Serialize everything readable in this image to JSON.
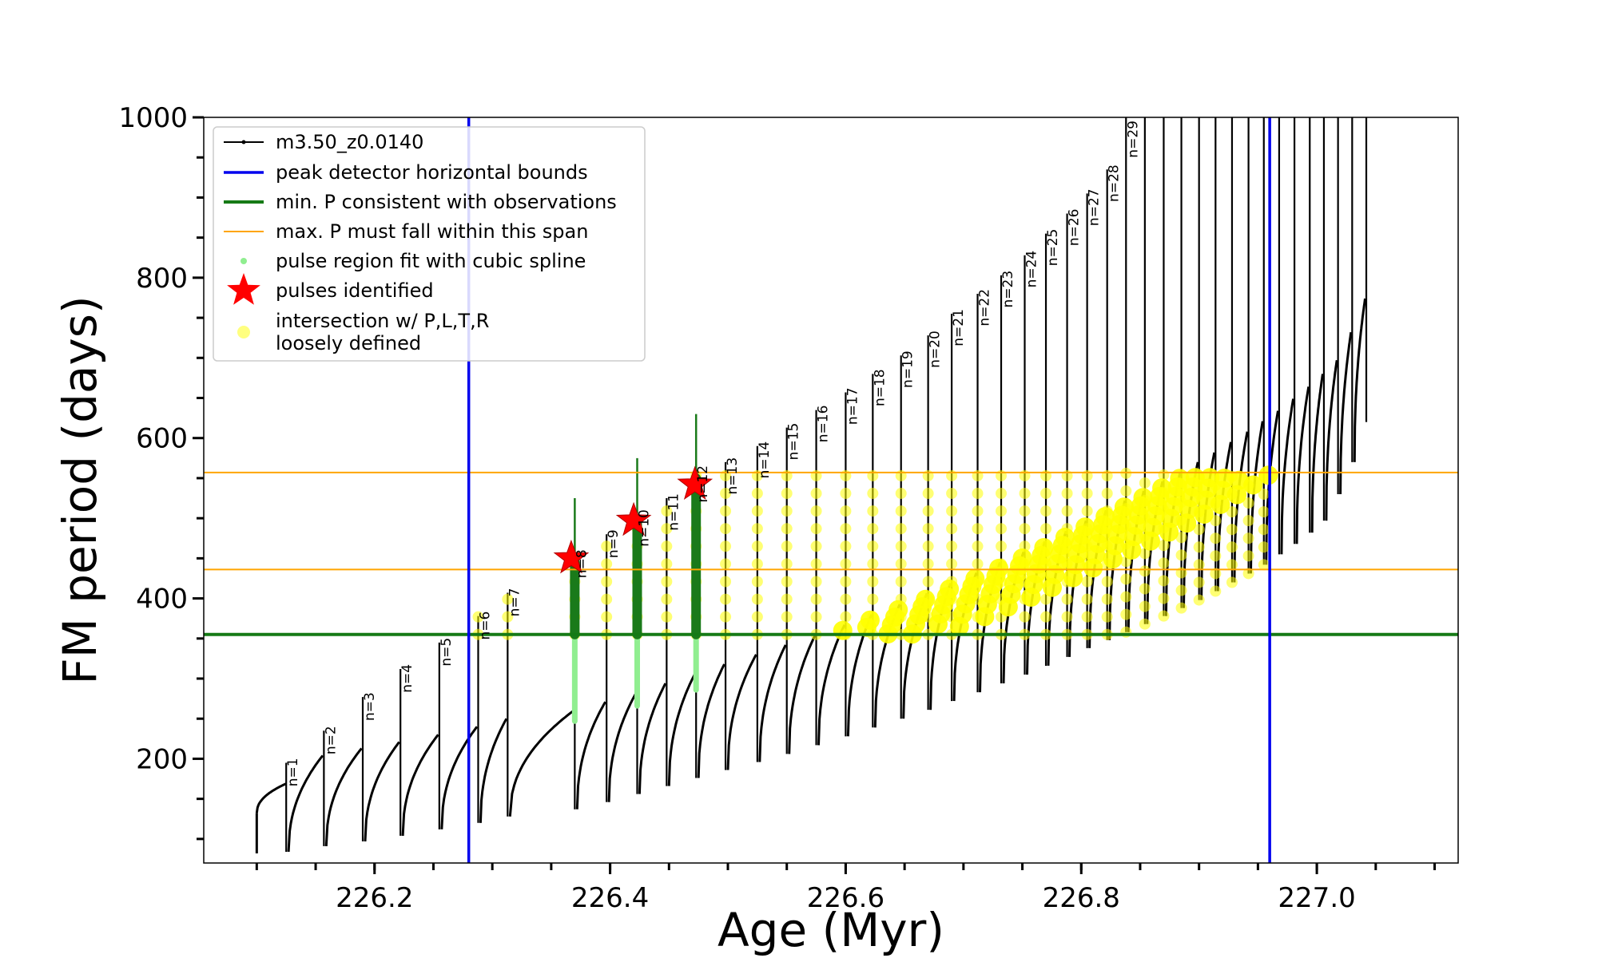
{
  "chart_data": {
    "type": "line",
    "xlabel": "Age (Myr)",
    "ylabel": "FM period (days)",
    "xlim": [
      226.055,
      227.12
    ],
    "ylim": [
      70,
      1000
    ],
    "x_ticks": [
      {
        "value": 226.2,
        "label": "226.2"
      },
      {
        "value": 226.4,
        "label": "226.4"
      },
      {
        "value": 226.6,
        "label": "226.6"
      },
      {
        "value": 226.8,
        "label": "226.8"
      },
      {
        "value": 227.0,
        "label": "227.0"
      }
    ],
    "x_minor_step": 0.05,
    "y_ticks": [
      {
        "value": 200,
        "label": "200"
      },
      {
        "value": 400,
        "label": "400"
      },
      {
        "value": 600,
        "label": "600"
      },
      {
        "value": 800,
        "label": "800"
      },
      {
        "value": 1000,
        "label": "1000"
      }
    ],
    "y_minor_step": 50,
    "grid": false,
    "legend_position": "top-left",
    "colors": {
      "track": "#000000",
      "bounds": "#0000ee",
      "min_p": "#157a15",
      "max_p_span": "#ffa500",
      "spline": "#90ee90",
      "spline_dark": "#1a7a1a",
      "pulse_star": "#ff0000",
      "intersection": "#ffff00"
    },
    "legend": [
      {
        "key": "track",
        "label": "m3.50_z0.0140",
        "style": "line-dot"
      },
      {
        "key": "bounds",
        "label": "peak detector horizontal bounds",
        "style": "line"
      },
      {
        "key": "min_p",
        "label": "min. P consistent with observations",
        "style": "line-thick"
      },
      {
        "key": "max_p_span",
        "label": "max. P must fall within this span",
        "style": "line-thin"
      },
      {
        "key": "spline",
        "label": "pulse region fit with cubic spline",
        "style": "dot"
      },
      {
        "key": "pulse_star",
        "label": "pulses identified",
        "style": "star"
      },
      {
        "key": "intersection",
        "label": "intersection w/ P,L,T,R",
        "label2": "loosely defined",
        "style": "circle"
      }
    ],
    "bounds_x": [
      226.28,
      226.96
    ],
    "min_period": 355,
    "max_period_span": [
      436,
      557
    ],
    "pulses": [
      {
        "n": "n=1",
        "x": 226.125,
        "min": 84,
        "peak": 195
      },
      {
        "n": "n=2",
        "x": 226.157,
        "min": 91,
        "peak": 235
      },
      {
        "n": "n=3",
        "x": 226.19,
        "min": 97,
        "peak": 277
      },
      {
        "n": "n=4",
        "x": 226.222,
        "min": 104,
        "peak": 312
      },
      {
        "n": "n=5",
        "x": 226.255,
        "min": 112,
        "peak": 345
      },
      {
        "n": "n=6",
        "x": 226.288,
        "min": 120,
        "peak": 378
      },
      {
        "n": "n=7",
        "x": 226.313,
        "min": 128,
        "peak": 407
      },
      {
        "n": "n=8",
        "x": 226.37,
        "min": 137,
        "peak": 455
      },
      {
        "n": "n=9",
        "x": 226.397,
        "min": 146,
        "peak": 480
      },
      {
        "n": "n=10",
        "x": 226.423,
        "min": 156,
        "peak": 505
      },
      {
        "n": "n=11",
        "x": 226.448,
        "min": 166,
        "peak": 525
      },
      {
        "n": "n=12",
        "x": 226.473,
        "min": 176,
        "peak": 560
      },
      {
        "n": "n=13",
        "x": 226.498,
        "min": 186,
        "peak": 570
      },
      {
        "n": "n=14",
        "x": 226.525,
        "min": 196,
        "peak": 590
      },
      {
        "n": "n=15",
        "x": 226.55,
        "min": 206,
        "peak": 613
      },
      {
        "n": "n=16",
        "x": 226.575,
        "min": 217,
        "peak": 635
      },
      {
        "n": "n=17",
        "x": 226.6,
        "min": 228,
        "peak": 657
      },
      {
        "n": "n=18",
        "x": 226.623,
        "min": 239,
        "peak": 680
      },
      {
        "n": "n=19",
        "x": 226.647,
        "min": 250,
        "peak": 703
      },
      {
        "n": "n=20",
        "x": 226.67,
        "min": 261,
        "peak": 728
      },
      {
        "n": "n=21",
        "x": 226.69,
        "min": 272,
        "peak": 755
      },
      {
        "n": "n=22",
        "x": 226.712,
        "min": 283,
        "peak": 780
      },
      {
        "n": "n=23",
        "x": 226.732,
        "min": 294,
        "peak": 803
      },
      {
        "n": "n=24",
        "x": 226.752,
        "min": 305,
        "peak": 828
      },
      {
        "n": "n=25",
        "x": 226.77,
        "min": 316,
        "peak": 855
      },
      {
        "n": "n=26",
        "x": 226.788,
        "min": 327,
        "peak": 880
      },
      {
        "n": "n=27",
        "x": 226.805,
        "min": 338,
        "peak": 905
      },
      {
        "n": "n=28",
        "x": 226.822,
        "min": 348,
        "peak": 935
      },
      {
        "n": "n=29",
        "x": 226.838,
        "min": 358,
        "peak": 1000
      },
      {
        "n": "",
        "x": 226.854,
        "min": 368,
        "peak": 1000
      },
      {
        "n": "",
        "x": 226.87,
        "min": 378,
        "peak": 1000
      },
      {
        "n": "",
        "x": 226.885,
        "min": 388,
        "peak": 1000
      },
      {
        "n": "",
        "x": 226.9,
        "min": 398,
        "peak": 1000
      },
      {
        "n": "",
        "x": 226.914,
        "min": 409,
        "peak": 1000
      },
      {
        "n": "",
        "x": 226.928,
        "min": 420,
        "peak": 1000
      },
      {
        "n": "",
        "x": 226.942,
        "min": 431,
        "peak": 1000
      },
      {
        "n": "",
        "x": 226.955,
        "min": 442,
        "peak": 1000
      },
      {
        "n": "",
        "x": 226.968,
        "min": 455,
        "peak": 1000
      },
      {
        "n": "",
        "x": 226.981,
        "min": 468,
        "peak": 1000
      },
      {
        "n": "",
        "x": 226.994,
        "min": 482,
        "peak": 1000
      },
      {
        "n": "",
        "x": 227.006,
        "min": 497,
        "peak": 1000
      },
      {
        "n": "",
        "x": 227.018,
        "min": 530,
        "peak": 1000
      },
      {
        "n": "",
        "x": 227.03,
        "min": 570,
        "peak": 1000
      },
      {
        "n": "",
        "x": 227.042,
        "min": 620,
        "peak": 1000
      }
    ],
    "identified_pulses": [
      {
        "x": 226.367,
        "y": 450
      },
      {
        "x": 226.42,
        "y": 497
      },
      {
        "x": 226.472,
        "y": 542
      }
    ]
  }
}
